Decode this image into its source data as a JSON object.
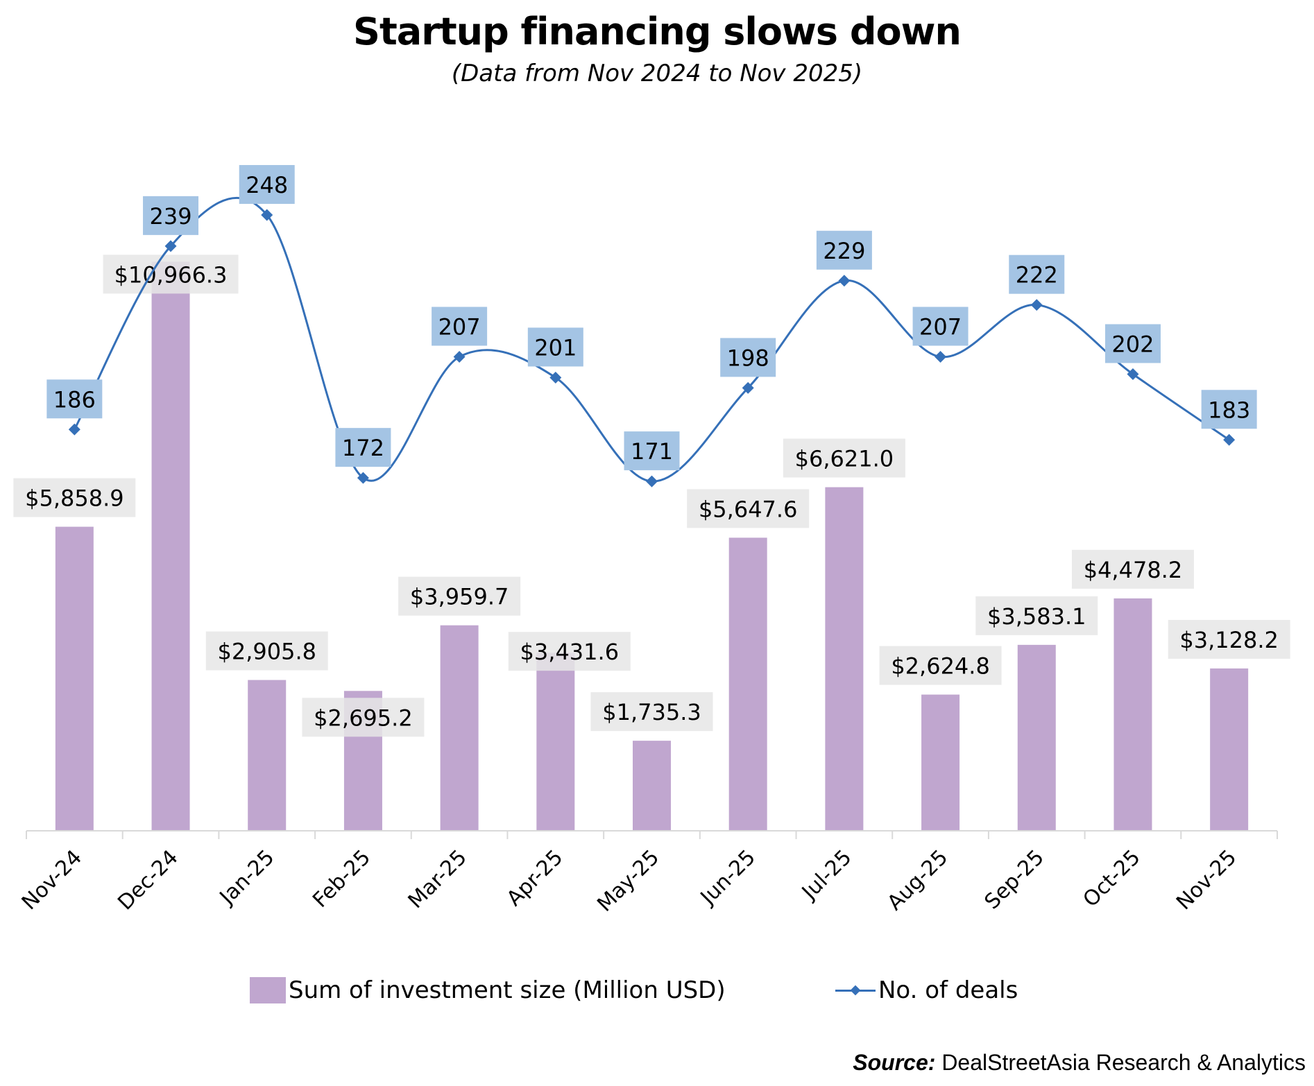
{
  "chart_data": {
    "type": "bar+line",
    "title": "Startup financing slows down",
    "subtitle": "(Data from Nov 2024 to Nov 2025)",
    "categories": [
      "Nov-24",
      "Dec-24",
      "Jan-25",
      "Feb-25",
      "Mar-25",
      "Apr-25",
      "May-25",
      "Jun-25",
      "Jul-25",
      "Aug-25",
      "Sep-25",
      "Oct-25",
      "Nov-25"
    ],
    "series": [
      {
        "name": "Sum of investment size (Million USD)",
        "type": "bar",
        "axis": "primary",
        "color": "#c0a6cf",
        "values": [
          5858.9,
          10966.3,
          2905.8,
          2695.2,
          3959.7,
          3431.6,
          1735.3,
          5647.6,
          6621.0,
          2624.8,
          3583.1,
          4478.2,
          3128.2
        ],
        "labels": [
          "$5,858.9",
          "$10,966.3",
          "$2,905.8",
          "$2,695.2",
          "$3,959.7",
          "$3,431.6",
          "$1,735.3",
          "$5,647.6",
          "$6,621.0",
          "$2,624.8",
          "$3,583.1",
          "$4,478.2",
          "$3,128.2"
        ],
        "label_bg": "#e6e6e6"
      },
      {
        "name": "No. of deals",
        "type": "line",
        "axis": "secondary",
        "smooth": true,
        "marker": "diamond",
        "color": "#3570b8",
        "values": [
          186,
          239,
          248,
          172,
          207,
          201,
          171,
          198,
          229,
          207,
          222,
          202,
          183
        ],
        "labels": [
          "186",
          "239",
          "248",
          "172",
          "207",
          "201",
          "171",
          "198",
          "229",
          "207",
          "222",
          "202",
          "183"
        ],
        "label_bg": "#a4c4e4"
      }
    ],
    "primary_ylim": [
      0,
      12000
    ],
    "secondary_ylim": [
      70,
      250
    ],
    "xlabel": "",
    "ylabel": "",
    "y_axis_visible": false,
    "grid": false,
    "legend_position": "bottom",
    "source_label": "Source:",
    "source_text": "DealStreetAsia Research & Analytics"
  }
}
